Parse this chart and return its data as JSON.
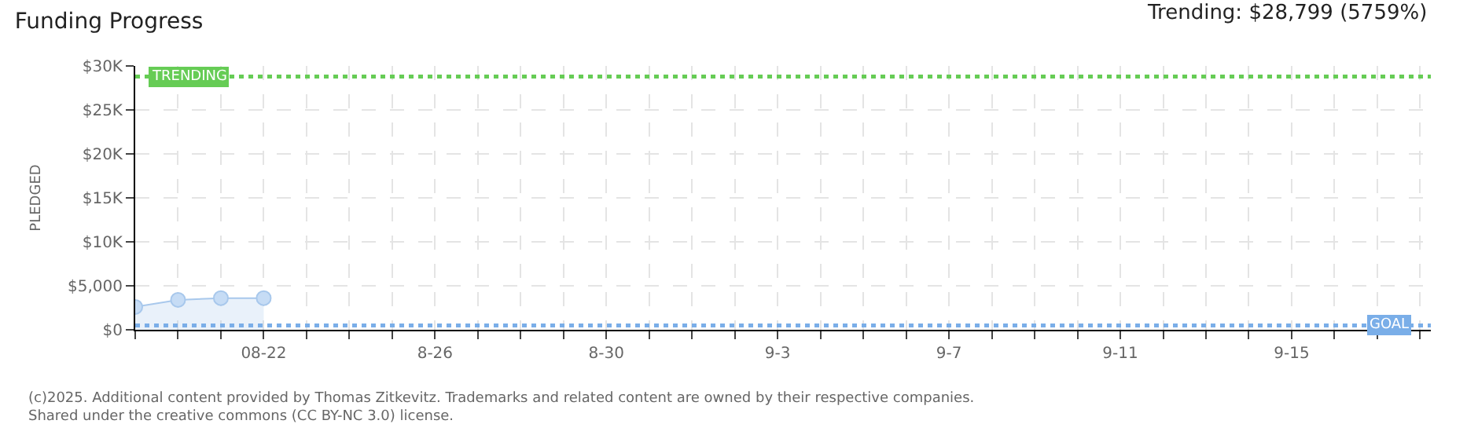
{
  "chart_data": {
    "type": "area",
    "title": "Funding Progress",
    "ylabel": "PLEDGED",
    "x": [
      "2025-08-19",
      "2025-08-20",
      "2025-08-21",
      "2025-08-22"
    ],
    "series": [
      {
        "color": "#a8c8ec",
        "values": [
          2600,
          3400,
          3600,
          3600
        ]
      }
    ],
    "marker": "circle",
    "grid": true,
    "xlim": [
      "2025-08-19",
      "2025-09-18T06:00"
    ],
    "xticks": [
      {
        "value": "2025-08-19",
        "label": null
      },
      {
        "value": "2025-08-20",
        "label": null
      },
      {
        "value": "2025-08-21",
        "label": null
      },
      {
        "value": "2025-08-22",
        "label": "08-22"
      },
      {
        "value": "2025-08-23",
        "label": null
      },
      {
        "value": "2025-08-24",
        "label": null
      },
      {
        "value": "2025-08-25",
        "label": null
      },
      {
        "value": "2025-08-26",
        "label": "8-26"
      },
      {
        "value": "2025-08-27",
        "label": null
      },
      {
        "value": "2025-08-28",
        "label": null
      },
      {
        "value": "2025-08-29",
        "label": null
      },
      {
        "value": "2025-08-30",
        "label": "8-30"
      },
      {
        "value": "2025-08-31",
        "label": null
      },
      {
        "value": "2025-09-01",
        "label": null
      },
      {
        "value": "2025-09-02",
        "label": null
      },
      {
        "value": "2025-09-03",
        "label": "9-3"
      },
      {
        "value": "2025-09-04",
        "label": null
      },
      {
        "value": "2025-09-05",
        "label": null
      },
      {
        "value": "2025-09-06",
        "label": null
      },
      {
        "value": "2025-09-07",
        "label": "9-7"
      },
      {
        "value": "2025-09-08",
        "label": null
      },
      {
        "value": "2025-09-09",
        "label": null
      },
      {
        "value": "2025-09-10",
        "label": null
      },
      {
        "value": "2025-09-11",
        "label": "9-11"
      },
      {
        "value": "2025-09-12",
        "label": null
      },
      {
        "value": "2025-09-13",
        "label": null
      },
      {
        "value": "2025-09-14",
        "label": null
      },
      {
        "value": "2025-09-15",
        "label": "9-15"
      },
      {
        "value": "2025-09-16",
        "label": null
      },
      {
        "value": "2025-09-17",
        "label": null
      },
      {
        "value": "2025-09-18",
        "label": null
      }
    ],
    "ylim": [
      0,
      30000
    ],
    "yticks": [
      {
        "value": 0,
        "label": "$0"
      },
      {
        "value": 5000,
        "label": "$5,000"
      },
      {
        "value": 10000,
        "label": "$10K"
      },
      {
        "value": 15000,
        "label": "$15K"
      },
      {
        "value": 20000,
        "label": "$20K"
      },
      {
        "value": 25000,
        "label": "$25K"
      },
      {
        "value": 30000,
        "label": "$30K"
      }
    ],
    "ref_lines": [
      {
        "axis": "y",
        "value": 28799,
        "label": "TRENDING",
        "color": "#66cc55",
        "line_style": "dotted"
      },
      {
        "axis": "y",
        "value": 500,
        "label": "GOAL",
        "color": "#7aaee8",
        "line_style": "dotted"
      }
    ],
    "annotations": [
      "Trending: $28,799 (5759%)",
      "(c)2025. Additional content provided by Thomas Zitkevitz. Trademarks and related content are owned by their respective companies.",
      "Shared under the creative commons (CC BY-NC 3.0) license."
    ]
  }
}
